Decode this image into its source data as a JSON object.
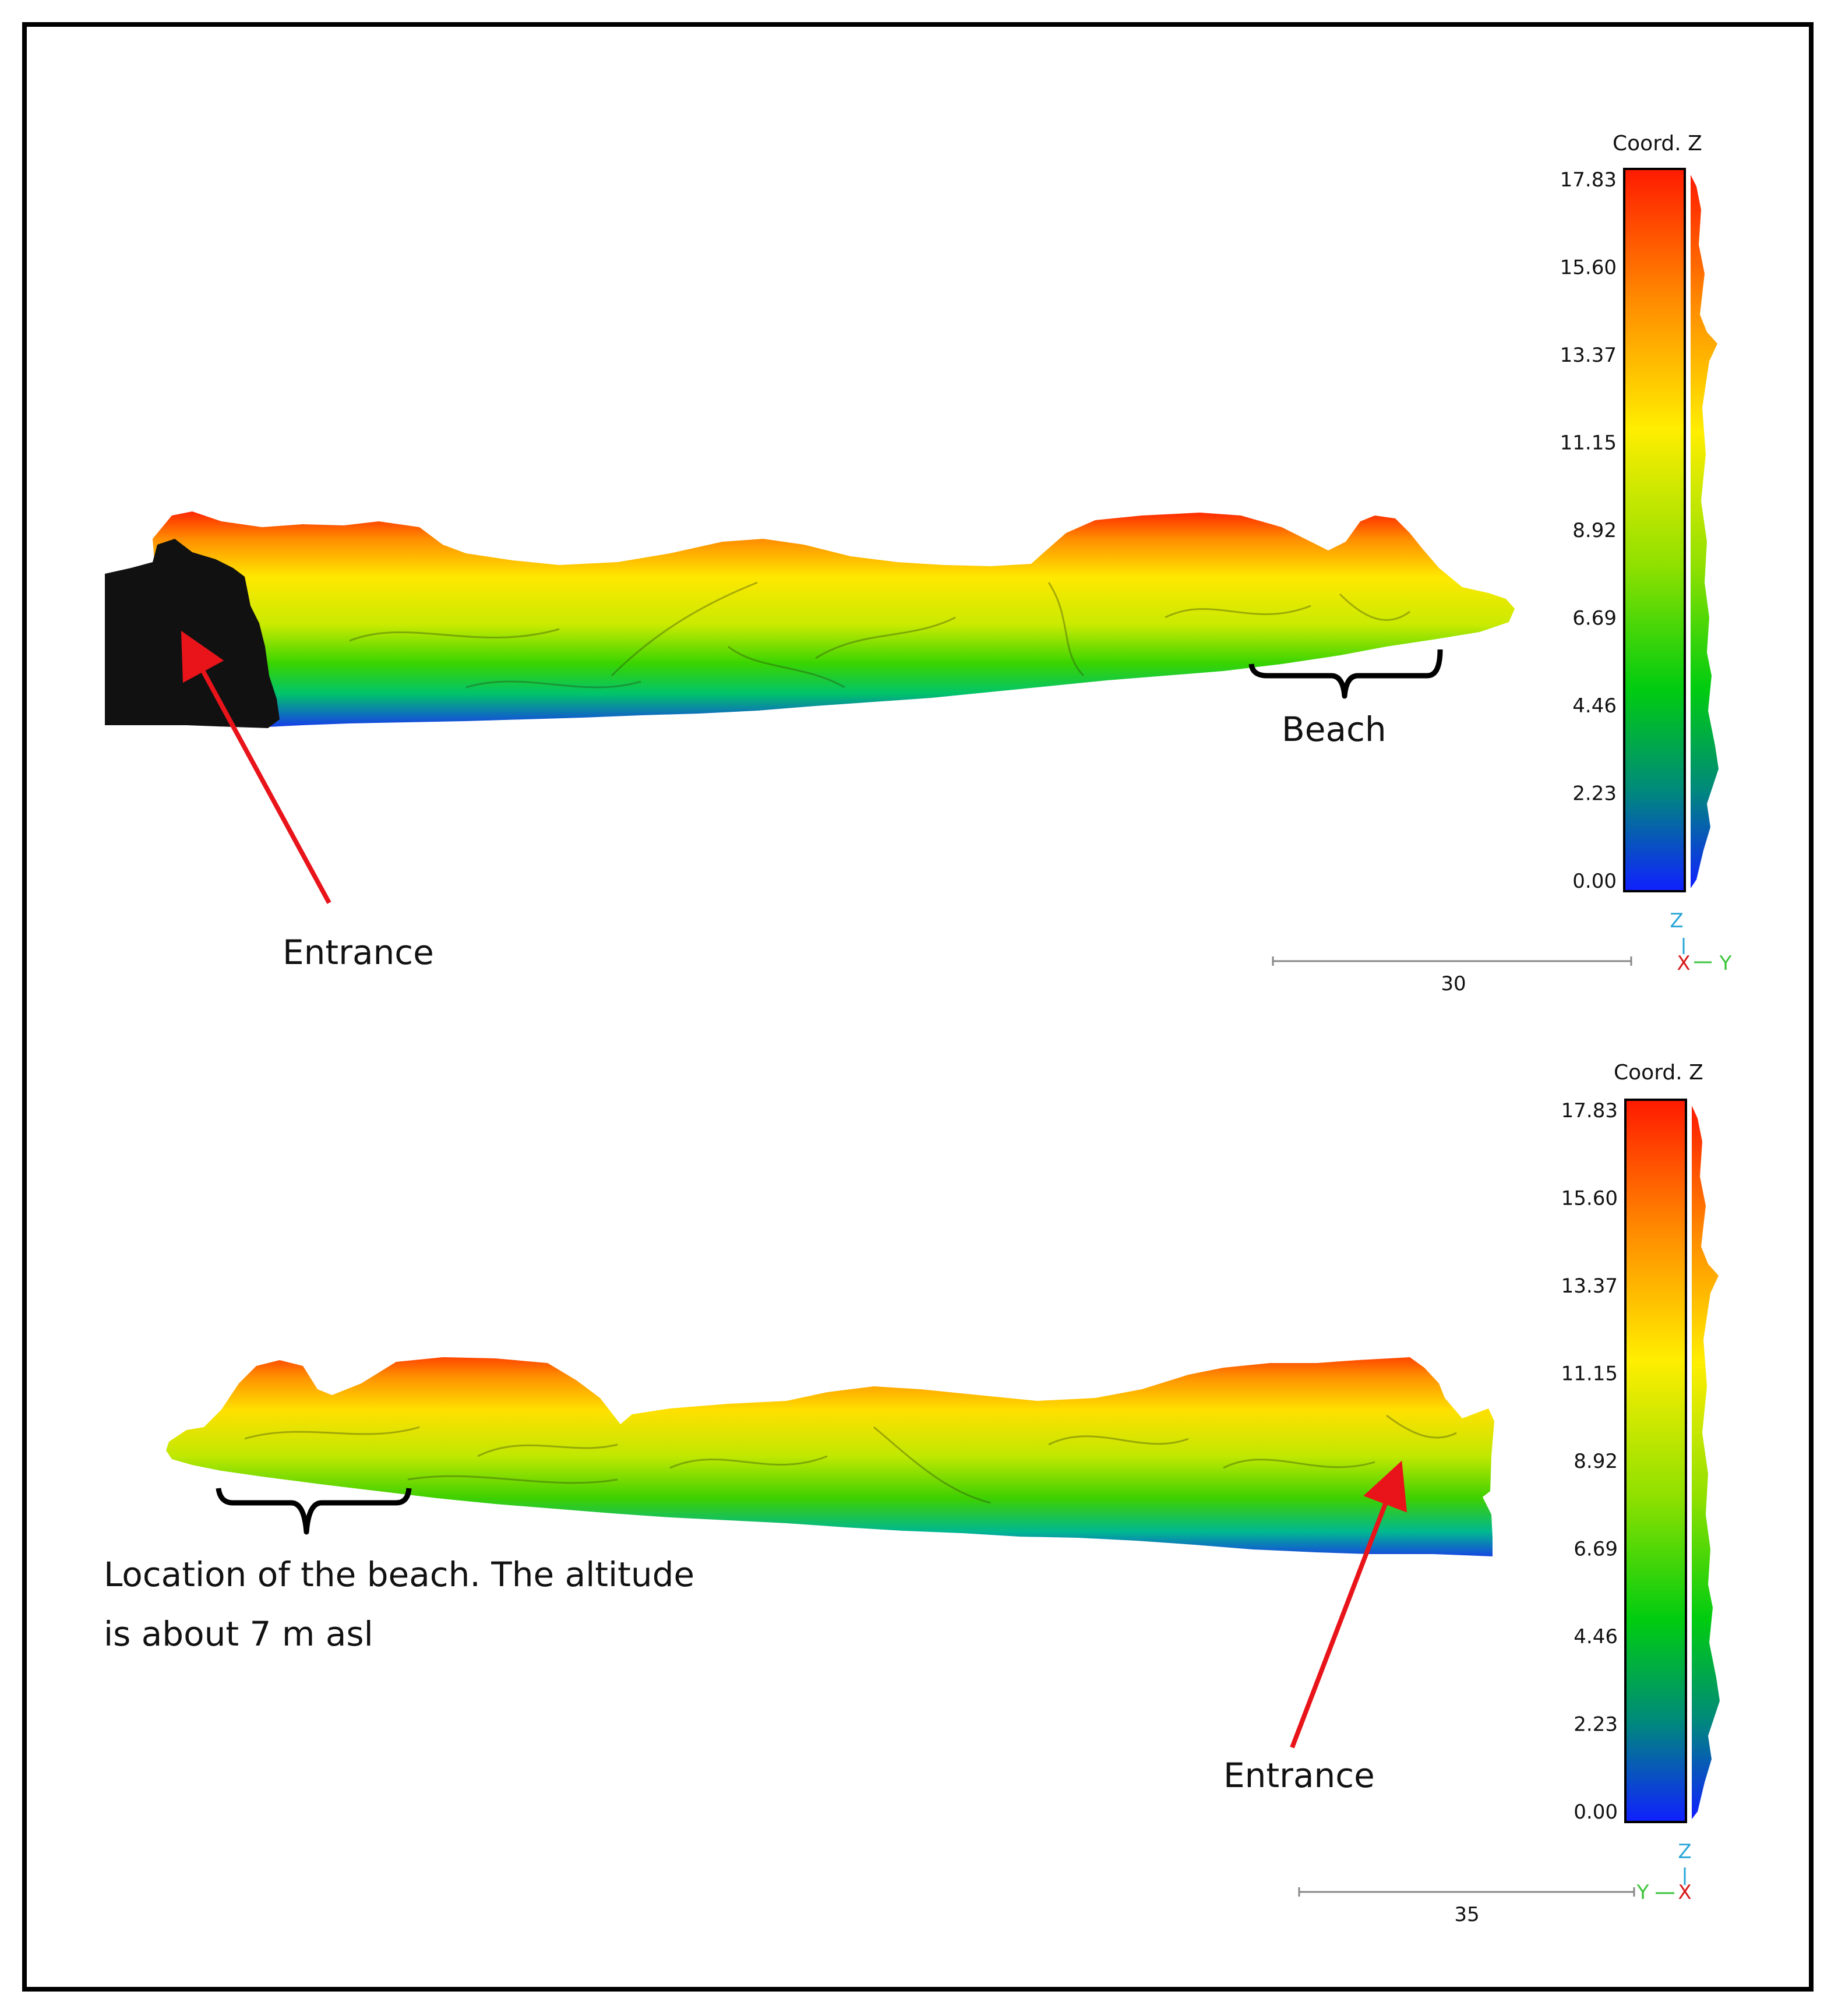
{
  "colors": {
    "arrow": "#e8141a",
    "z_axis": "#2aa7d8",
    "x_axis": "#d81b1b",
    "y_axis": "#3ec43e"
  },
  "colorbar_ticks": [
    "17.83",
    "15.60",
    "13.37",
    "11.15",
    "8.92",
    "6.69",
    "4.46",
    "2.23",
    "0.00"
  ],
  "top_view": {
    "colorbar_title": "Coord. Z",
    "scale_value": "30",
    "axis_z": "Z",
    "axis_left": "X",
    "axis_right": "Y",
    "label_entrance": "Entrance",
    "label_beach": "Beach"
  },
  "bottom_view": {
    "colorbar_title": "Coord. Z",
    "scale_value": "35",
    "axis_z": "Z",
    "axis_left": "Y",
    "axis_right": "X",
    "label_entrance": "Entrance",
    "label_beach_line1": "Location of the beach. The altitude",
    "label_beach_line2": "is about 7 m asl"
  }
}
